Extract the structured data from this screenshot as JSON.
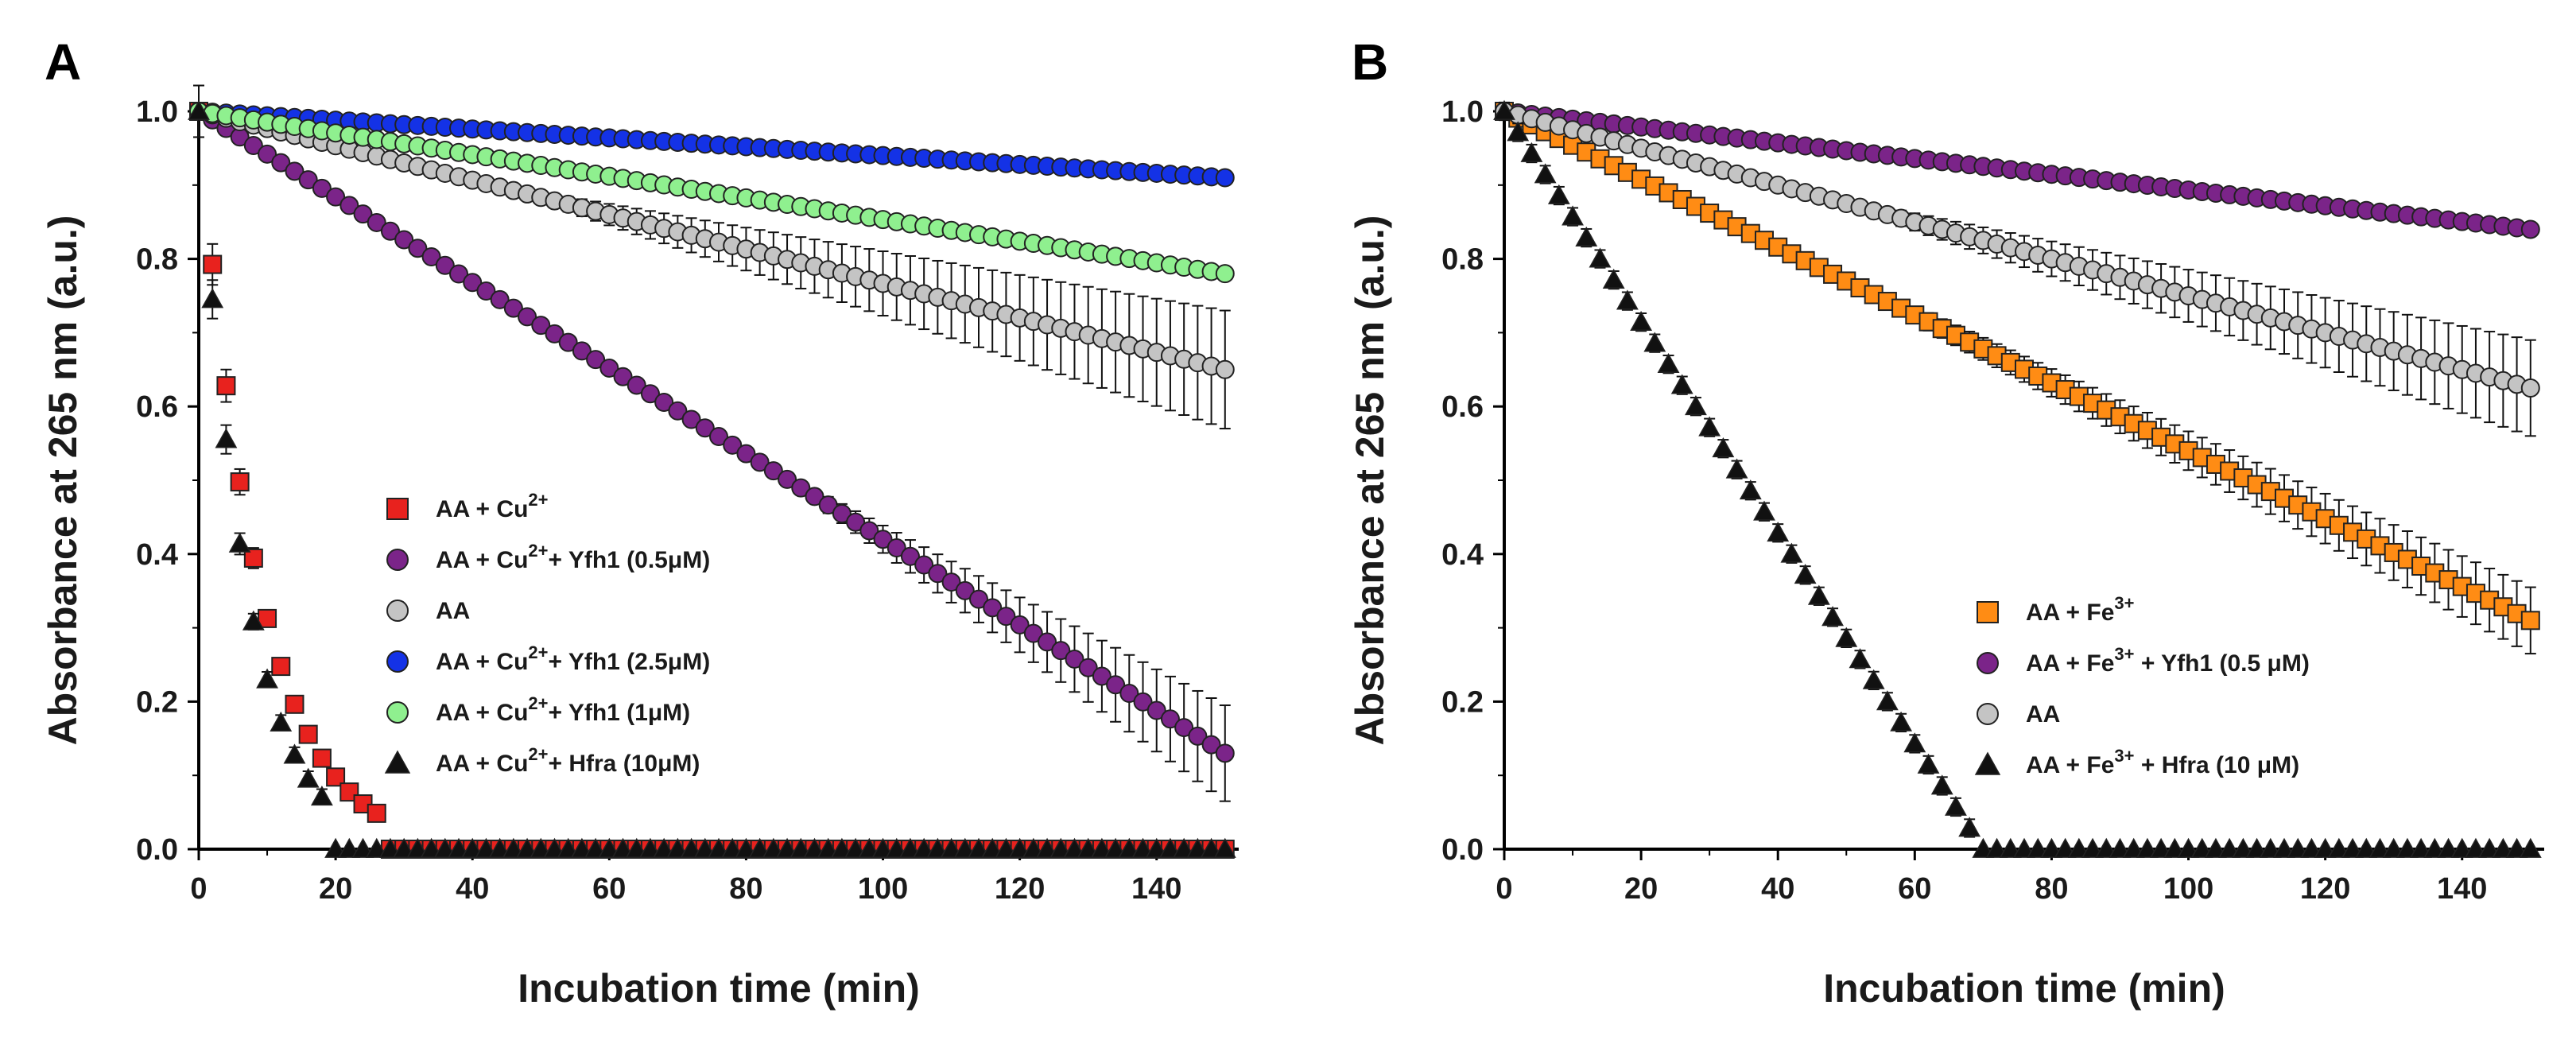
{
  "chart_data": [
    {
      "panel": "A",
      "type": "scatter",
      "xlabel": "Incubation time (min)",
      "ylabel": "Absorbance at 265 nm (a.u.)",
      "xlim": [
        0,
        152
      ],
      "ylim": [
        0,
        1.0
      ],
      "xticks": [
        "0",
        "20",
        "40",
        "60",
        "80",
        "100",
        "120",
        "140"
      ],
      "yticks": [
        "0.0",
        "0.2",
        "0.4",
        "0.6",
        "0.8",
        "1.0"
      ],
      "legend_position": "center-left",
      "series": [
        {
          "legend_main": "AA + Cu",
          "legend_sup": "2+",
          "legend_rest": "",
          "marker": "square",
          "color": "#e8221e",
          "model": "exp",
          "start": 1.0,
          "tau": 8.6,
          "zero_at": 28,
          "t_end": 150,
          "dt": 2,
          "err_mode": "exp",
          "err_scale": 0.035
        },
        {
          "legend_main": "AA + Cu",
          "legend_sup": "2+",
          "legend_rest": "+ Yfh1 (0.5μM)",
          "marker": "circle",
          "color": "#7b2489",
          "model": "linear",
          "start": 1.0,
          "end": 0.13,
          "t_end": 150,
          "dt": 2,
          "err_mode": "linear",
          "err_start_t": 80,
          "err_end": 0.065
        },
        {
          "legend_main": "AA",
          "legend_sup": "",
          "legend_rest": "",
          "marker": "circle",
          "color": "#c4c4c4",
          "model": "linear",
          "start": 1.0,
          "end": 0.65,
          "t_end": 150,
          "dt": 2,
          "err_mode": "linear",
          "err_start_t": 40,
          "err_end": 0.08
        },
        {
          "legend_main": "AA + Cu",
          "legend_sup": "2+",
          "legend_rest": "+ Yfh1 (2.5μM)",
          "marker": "circle",
          "color": "#1432e6",
          "model": "linear",
          "start": 1.0,
          "end": 0.91,
          "t_end": 150,
          "dt": 2,
          "err_mode": "none"
        },
        {
          "legend_main": "AA + Cu",
          "legend_sup": "2+",
          "legend_rest": "+ Yfh1 (1μM)",
          "marker": "circle",
          "color": "#8ff08f",
          "model": "linear",
          "start": 1.0,
          "end": 0.78,
          "t_end": 150,
          "dt": 2,
          "err_mode": "none"
        },
        {
          "legend_main": "AA + Cu",
          "legend_sup": "2+",
          "legend_rest": "+ Hfra (10μM)",
          "marker": "triangle",
          "color": "#111111",
          "model": "exp",
          "start": 1.0,
          "tau": 6.8,
          "zero_at": 20,
          "t_end": 150,
          "dt": 2,
          "err_mode": "exp",
          "err_scale": 0.035
        }
      ]
    },
    {
      "panel": "B",
      "type": "scatter",
      "xlabel": "Incubation time (min)",
      "ylabel": "Absorbance at 265 nm (a.u.)",
      "xlim": [
        0,
        152
      ],
      "ylim": [
        0,
        1.0
      ],
      "xticks": [
        "0",
        "20",
        "40",
        "60",
        "80",
        "100",
        "120",
        "140"
      ],
      "yticks": [
        "0.0",
        "0.2",
        "0.4",
        "0.6",
        "0.8",
        "1.0"
      ],
      "legend_position": "bottom-right",
      "series": [
        {
          "legend_main": "AA + Fe",
          "legend_sup": "3+",
          "legend_rest": "",
          "marker": "square",
          "color": "#ff8c14",
          "model": "linear",
          "start": 1.0,
          "end": 0.31,
          "t_end": 150,
          "dt": 2,
          "err_mode": "linear",
          "err_start_t": 30,
          "err_end": 0.045
        },
        {
          "legend_main": "AA + Fe",
          "legend_sup": "3+",
          "legend_rest": " + Yfh1 (0.5 μM)",
          "marker": "circle",
          "color": "#7b2489",
          "model": "linear",
          "start": 1.0,
          "end": 0.84,
          "t_end": 150,
          "dt": 2,
          "err_mode": "none"
        },
        {
          "legend_main": "AA",
          "legend_sup": "",
          "legend_rest": "",
          "marker": "circle",
          "color": "#c4c4c4",
          "model": "linear",
          "start": 1.0,
          "end": 0.625,
          "t_end": 150,
          "dt": 2,
          "err_mode": "linear",
          "err_start_t": 40,
          "err_end": 0.065
        },
        {
          "legend_main": "AA + Fe",
          "legend_sup": "3+",
          "legend_rest": " + Hfra (10 μM)",
          "marker": "triangle",
          "color": "#111111",
          "model": "piecewise",
          "start": 1.0,
          "zero_t": 70,
          "t_end": 150,
          "dt": 2,
          "err_mode": "small",
          "err_scale": 0.012
        }
      ]
    }
  ]
}
